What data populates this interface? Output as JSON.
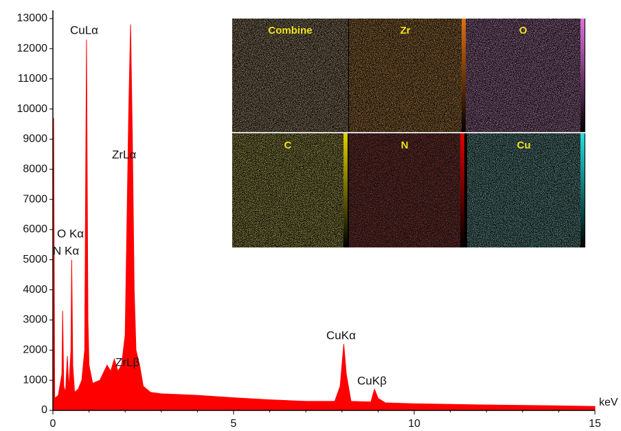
{
  "chart_data": {
    "type": "area",
    "color": "#ff0000",
    "xlabel": "keV",
    "x": [
      0,
      0.02,
      0.05,
      0.15,
      0.25,
      0.27,
      0.3,
      0.35,
      0.4,
      0.44,
      0.5,
      0.52,
      0.55,
      0.6,
      0.7,
      0.8,
      0.88,
      0.93,
      0.97,
      1.0,
      1.1,
      1.3,
      1.5,
      1.6,
      1.7,
      1.8,
      1.9,
      2.0,
      2.1,
      2.15,
      2.2,
      2.25,
      2.3,
      2.4,
      2.5,
      2.7,
      3,
      4,
      5,
      6,
      7,
      7.8,
      7.95,
      8.05,
      8.12,
      8.25,
      8.8,
      8.9,
      9.0,
      9.2,
      10,
      12,
      14,
      15
    ],
    "values": [
      0,
      9700,
      400,
      500,
      1200,
      3300,
      800,
      600,
      1800,
      700,
      2000,
      5000,
      1500,
      600,
      700,
      1000,
      2000,
      12300,
      3000,
      1500,
      900,
      1000,
      1500,
      1300,
      1700,
      1300,
      1500,
      2500,
      10000,
      12800,
      9000,
      4000,
      2000,
      1500,
      800,
      600,
      550,
      500,
      420,
      350,
      300,
      300,
      800,
      2200,
      1200,
      300,
      280,
      700,
      400,
      250,
      220,
      180,
      150,
      130
    ],
    "xlim": [
      0,
      15
    ],
    "xticks": [
      0,
      5,
      10,
      15
    ],
    "ylim": [
      0,
      13000
    ],
    "yticks": [
      0,
      1000,
      2000,
      3000,
      4000,
      5000,
      6000,
      7000,
      8000,
      9000,
      10000,
      11000,
      12000,
      13000
    ],
    "annotations": [
      "CuLα",
      "ZrLα",
      "O Kα",
      "N Kα",
      "ZrLβ",
      "CuKα",
      "CuKβ"
    ]
  },
  "inset_maps": [
    "Combine",
    "Zr",
    "O",
    "C",
    "N",
    "Cu"
  ]
}
